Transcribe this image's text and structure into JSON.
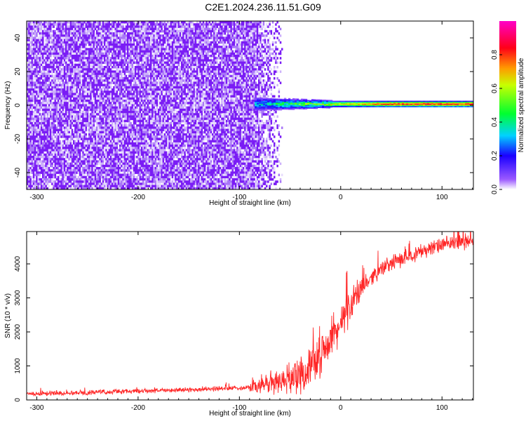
{
  "title": "C2E1.2024.236.11.51.G09",
  "chart_data": [
    {
      "type": "heatmap",
      "xlabel": "Height of straight line (km)",
      "ylabel": "Frequency (Hz)",
      "xlim": [
        -310,
        131
      ],
      "ylim": [
        -50,
        50
      ],
      "xticks": [
        -300,
        -200,
        -100,
        0,
        100
      ],
      "yticks": [
        -40,
        -20,
        0,
        20,
        40
      ],
      "colorbar": {
        "label": "Normalized spectral amplitude",
        "range": [
          0,
          1
        ],
        "ticks": [
          0.0,
          0.2,
          0.4,
          0.6,
          0.8
        ],
        "colormap": [
          "#ffffff",
          "#7f00ff",
          "#0000ff",
          "#00ffff",
          "#00ff00",
          "#ffff00",
          "#ff0000",
          "#ff00ff"
        ]
      },
      "noise_region": {
        "x_range": [
          -310,
          -85
        ],
        "freq_range": [
          -50,
          50
        ],
        "amplitude": 0.05
      },
      "signal_ridge": {
        "x_range": [
          -85,
          131
        ],
        "frequency_hz": 1,
        "amplitude_start": 0.35,
        "amplitude_end": 0.95
      }
    },
    {
      "type": "line",
      "xlabel": "Height of straight line (km)",
      "ylabel": "SNR (10 * v/v)",
      "xlim": [
        -310,
        131
      ],
      "ylim": [
        0,
        4950
      ],
      "xticks": [
        -300,
        -200,
        -100,
        0,
        100
      ],
      "yticks": [
        0,
        1000,
        2000,
        3000,
        4000
      ],
      "grid": false,
      "series": [
        {
          "color": "#ff0000",
          "x": [
            -310,
            -250,
            -200,
            -150,
            -100,
            -80,
            -60,
            -40,
            -30,
            -20,
            -10,
            0,
            5,
            10,
            20,
            30,
            40,
            60,
            80,
            100,
            131
          ],
          "y": [
            180,
            220,
            260,
            300,
            350,
            420,
            550,
            750,
            950,
            1300,
            1800,
            2200,
            2500,
            2800,
            3250,
            3600,
            3850,
            4150,
            4380,
            4550,
            4700
          ]
        }
      ]
    }
  ]
}
